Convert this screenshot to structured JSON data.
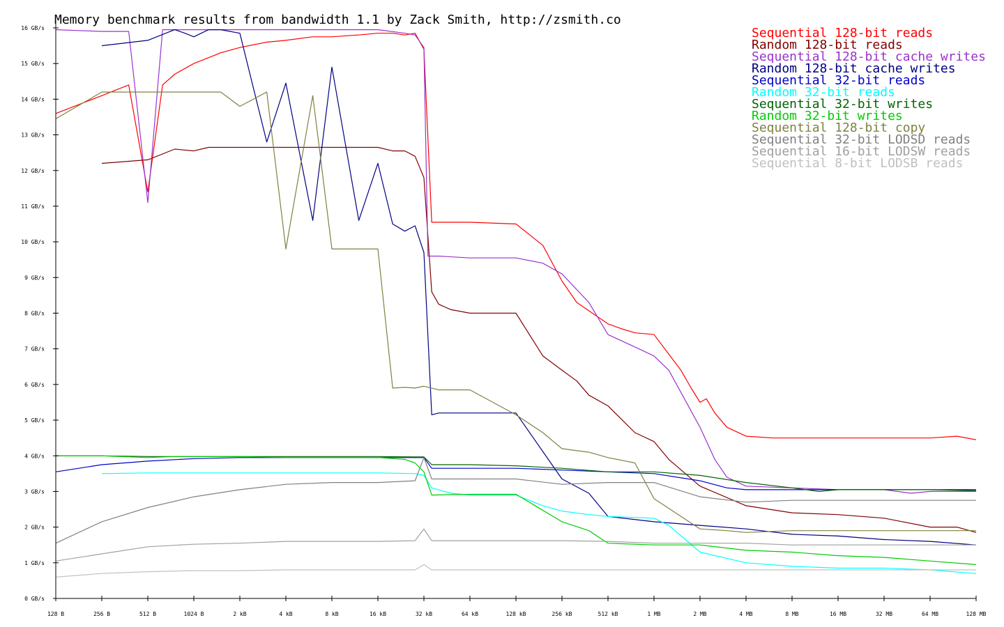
{
  "chart_data": {
    "type": "line",
    "title": "Memory benchmark results from bandwidth 1.1 by Zack Smith, http://zsmith.co",
    "xlabel": "",
    "ylabel": "",
    "x_scale": "log2",
    "x_ticks": [
      "128 B",
      "256 B",
      "512 B",
      "1024 B",
      "2 kB",
      "4 kB",
      "8 kB",
      "16 kB",
      "32 kB",
      "64 kB",
      "128 kB",
      "256 kB",
      "512 kB",
      "1 MB",
      "2 MB",
      "4 MB",
      "8 MB",
      "16 MB",
      "32 MB",
      "64 MB",
      "128 MB"
    ],
    "y_ticks": [
      "0 GB/s",
      "1 GB/s",
      "2 GB/s",
      "3 GB/s",
      "4 GB/s",
      "5 GB/s",
      "6 GB/s",
      "7 GB/s",
      "8 GB/s",
      "9 GB/s",
      "10 GB/s",
      "11 GB/s",
      "12 GB/s",
      "13 GB/s",
      "14 GB/s",
      "15 GB/s",
      "16 GB/s"
    ],
    "ylim": [
      0,
      16
    ],
    "grid": false,
    "legend_position": "top-right",
    "series": [
      {
        "name": "Sequential 128-bit reads",
        "color": "#ff0000",
        "x": [
          "128 B",
          "256 B",
          "384 B",
          "512 B",
          "640 B",
          "768 B",
          "1024 B",
          "1.5 kB",
          "2 kB",
          "3 kB",
          "4 kB",
          "6 kB",
          "8 kB",
          "12 kB",
          "16 kB",
          "20 kB",
          "24 kB",
          "28 kB",
          "32 kB",
          "36 kB",
          "40 kB",
          "64 kB",
          "128 kB",
          "192 kB",
          "256 kB",
          "320 kB",
          "512 kB",
          "640 kB",
          "768 kB",
          "1 MB",
          "1.5 MB",
          "1.75 MB",
          "2 MB",
          "2.2 MB",
          "2.5 MB",
          "3 MB",
          "4 MB",
          "6 MB",
          "8 MB",
          "16 MB",
          "32 MB",
          "64 MB",
          "96 MB",
          "128 MB"
        ],
        "y": [
          13.6,
          14.1,
          14.4,
          11.4,
          14.4,
          14.7,
          15.0,
          15.3,
          15.45,
          15.6,
          15.65,
          15.75,
          15.75,
          15.8,
          15.85,
          15.85,
          15.8,
          15.85,
          15.4,
          10.55,
          10.55,
          10.55,
          10.5,
          9.9,
          8.9,
          8.3,
          7.7,
          7.55,
          7.45,
          7.4,
          6.4,
          5.9,
          5.5,
          5.6,
          5.2,
          4.8,
          4.55,
          4.5,
          4.5,
          4.5,
          4.5,
          4.5,
          4.55,
          4.45
        ]
      },
      {
        "name": "Random 128-bit reads",
        "color": "#800000",
        "x": [
          "256 B",
          "512 B",
          "768 B",
          "1024 B",
          "1.25 kB",
          "2 kB",
          "4 kB",
          "8 kB",
          "12 kB",
          "16 kB",
          "20 kB",
          "24 kB",
          "28 kB",
          "32 kB",
          "36 kB",
          "40 kB",
          "48 kB",
          "64 kB",
          "128 kB",
          "192 kB",
          "256 kB",
          "320 kB",
          "384 kB",
          "512 kB",
          "768 kB",
          "1 MB",
          "1.25 MB",
          "2 MB",
          "4 MB",
          "8 MB",
          "16 MB",
          "32 MB",
          "64 MB",
          "96 MB",
          "128 MB"
        ],
        "y": [
          12.2,
          12.3,
          12.6,
          12.55,
          12.65,
          12.65,
          12.65,
          12.65,
          12.65,
          12.65,
          12.55,
          12.55,
          12.4,
          11.8,
          8.6,
          8.25,
          8.1,
          8.0,
          8.0,
          6.8,
          6.4,
          6.1,
          5.7,
          5.4,
          4.65,
          4.4,
          3.9,
          3.15,
          2.6,
          2.4,
          2.35,
          2.25,
          2.0,
          2.0,
          1.85
        ]
      },
      {
        "name": "Sequential 128-bit cache writes",
        "color": "#9933cc",
        "x": [
          "128 B",
          "256 B",
          "384 B",
          "512 B",
          "640 B",
          "768 B",
          "1024 B",
          "2 kB",
          "4 kB",
          "8 kB",
          "16 kB",
          "24 kB",
          "28 kB",
          "32 kB",
          "34 kB",
          "40 kB",
          "64 kB",
          "128 kB",
          "192 kB",
          "256 kB",
          "384 kB",
          "512 kB",
          "768 kB",
          "1 MB",
          "1.25 MB",
          "2 MB",
          "2.5 MB",
          "3 MB",
          "4 MB",
          "8 MB",
          "16 MB",
          "32 MB",
          "48 MB",
          "64 MB",
          "128 MB"
        ],
        "y": [
          15.95,
          15.9,
          15.9,
          11.1,
          15.95,
          15.95,
          15.95,
          15.95,
          15.95,
          15.95,
          15.95,
          15.85,
          15.8,
          15.45,
          9.6,
          9.6,
          9.55,
          9.55,
          9.4,
          9.1,
          8.3,
          7.4,
          7.05,
          6.8,
          6.4,
          4.8,
          3.9,
          3.4,
          3.15,
          3.1,
          3.05,
          3.05,
          2.95,
          3.0,
          3.0
        ]
      },
      {
        "name": "Random 128-bit cache writes",
        "color": "#000080",
        "x": [
          "256 B",
          "512 B",
          "768 B",
          "896 B",
          "1024 B",
          "1.25 kB",
          "1.5 kB",
          "2 kB",
          "3 kB",
          "4 kB",
          "6 kB",
          "8 kB",
          "12 kB",
          "16 kB",
          "20 kB",
          "24 kB",
          "28 kB",
          "32 kB",
          "36 kB",
          "40 kB",
          "64 kB",
          "128 kB",
          "256 kB",
          "384 kB",
          "512 kB",
          "1 MB",
          "2 MB",
          "4 MB",
          "8 MB",
          "16 MB",
          "32 MB",
          "64 MB",
          "128 MB"
        ],
        "y": [
          15.5,
          15.65,
          15.95,
          15.85,
          15.75,
          15.95,
          15.95,
          15.85,
          12.8,
          14.45,
          10.6,
          14.9,
          10.6,
          12.2,
          10.5,
          10.3,
          10.45,
          9.7,
          5.15,
          5.2,
          5.2,
          5.2,
          3.35,
          2.95,
          2.3,
          2.15,
          2.05,
          1.95,
          1.8,
          1.75,
          1.65,
          1.6,
          1.5
        ]
      },
      {
        "name": "Sequential 32-bit reads",
        "color": "#0000cc",
        "x": [
          "128 B",
          "256 B",
          "512 B",
          "1024 B",
          "2 kB",
          "4 kB",
          "8 kB",
          "16 kB",
          "28 kB",
          "32 kB",
          "36 kB",
          "64 kB",
          "128 kB",
          "256 kB",
          "512 kB",
          "1 MB",
          "2 MB",
          "3 MB",
          "4 MB",
          "8 MB",
          "16 MB",
          "32 MB",
          "64 MB",
          "128 MB"
        ],
        "y": [
          3.55,
          3.75,
          3.85,
          3.92,
          3.95,
          3.95,
          3.95,
          3.95,
          3.95,
          3.95,
          3.65,
          3.65,
          3.65,
          3.6,
          3.55,
          3.5,
          3.3,
          3.1,
          3.05,
          3.05,
          3.05,
          3.05,
          3.05,
          3.05
        ]
      },
      {
        "name": "Random 32-bit reads",
        "color": "#00ffff",
        "x": [
          "256 B",
          "512 B",
          "1024 B",
          "2 kB",
          "4 kB",
          "8 kB",
          "16 kB",
          "28 kB",
          "32 kB",
          "36 kB",
          "48 kB",
          "64 kB",
          "128 kB",
          "192 kB",
          "256 kB",
          "384 kB",
          "512 kB",
          "1 MB",
          "1.25 MB",
          "2 MB",
          "4 MB",
          "8 MB",
          "16 MB",
          "32 MB",
          "64 MB",
          "128 MB"
        ],
        "y": [
          3.5,
          3.52,
          3.52,
          3.52,
          3.52,
          3.52,
          3.52,
          3.5,
          3.45,
          3.1,
          2.95,
          2.9,
          2.9,
          2.6,
          2.45,
          2.35,
          2.3,
          2.25,
          2.05,
          1.3,
          1.0,
          0.9,
          0.85,
          0.85,
          0.8,
          0.7
        ]
      },
      {
        "name": "Sequential 32-bit writes",
        "color": "#006400",
        "x": [
          "128 B",
          "256 B",
          "512 B",
          "1024 B",
          "2 kB",
          "4 kB",
          "8 kB",
          "16 kB",
          "28 kB",
          "32 kB",
          "36 kB",
          "64 kB",
          "128 kB",
          "256 kB",
          "512 kB",
          "1 MB",
          "2 MB",
          "4 MB",
          "8 MB",
          "12 MB",
          "16 MB",
          "32 MB",
          "64 MB",
          "128 MB"
        ],
        "y": [
          4.0,
          4.0,
          3.98,
          3.98,
          3.98,
          3.98,
          3.98,
          3.98,
          3.97,
          3.97,
          3.75,
          3.75,
          3.72,
          3.65,
          3.55,
          3.55,
          3.45,
          3.25,
          3.1,
          3.0,
          3.05,
          3.05,
          3.05,
          3.02
        ]
      },
      {
        "name": "Random 32-bit writes",
        "color": "#00cc00",
        "x": [
          "128 B",
          "256 B",
          "512 B",
          "768 B",
          "1024 B",
          "2 kB",
          "4 kB",
          "8 kB",
          "16 kB",
          "24 kB",
          "28 kB",
          "32 kB",
          "36 kB",
          "64 kB",
          "128 kB",
          "256 kB",
          "384 kB",
          "512 kB",
          "1 MB",
          "2 MB",
          "4 MB",
          "8 MB",
          "16 MB",
          "32 MB",
          "64 MB",
          "128 MB"
        ],
        "y": [
          4.0,
          4.0,
          3.95,
          3.98,
          3.98,
          3.98,
          3.95,
          3.95,
          3.95,
          3.9,
          3.8,
          3.55,
          2.9,
          2.92,
          2.92,
          2.15,
          1.9,
          1.55,
          1.5,
          1.5,
          1.35,
          1.3,
          1.2,
          1.15,
          1.05,
          0.95
        ]
      },
      {
        "name": "Sequential 128-bit copy",
        "color": "#808040",
        "x": [
          "128 B",
          "256 B",
          "512 B",
          "1024 B",
          "1.5 kB",
          "2 kB",
          "3 kB",
          "4 kB",
          "6 kB",
          "8 kB",
          "16 kB",
          "20 kB",
          "24 kB",
          "28 kB",
          "32 kB",
          "40 kB",
          "64 kB",
          "128 kB",
          "192 kB",
          "256 kB",
          "384 kB",
          "512 kB",
          "768 kB",
          "1 MB",
          "2 MB",
          "3 MB",
          "4 MB",
          "8 MB",
          "16 MB",
          "32 MB",
          "64 MB",
          "128 MB"
        ],
        "y": [
          13.45,
          14.2,
          14.2,
          14.2,
          14.2,
          13.8,
          14.2,
          9.8,
          14.1,
          9.8,
          9.8,
          5.9,
          5.92,
          5.9,
          5.95,
          5.85,
          5.85,
          5.15,
          4.65,
          4.2,
          4.1,
          3.95,
          3.8,
          2.8,
          1.95,
          1.9,
          1.85,
          1.9,
          1.9,
          1.9,
          1.9,
          1.9
        ]
      },
      {
        "name": "Sequential 32-bit LODSD reads",
        "color": "#808080",
        "x": [
          "128 B",
          "256 B",
          "512 B",
          "1024 B",
          "2 kB",
          "4 kB",
          "8 kB",
          "16 kB",
          "28 kB",
          "32 kB",
          "36 kB",
          "64 kB",
          "128 kB",
          "256 kB",
          "512 kB",
          "1 MB",
          "2 MB",
          "4 MB",
          "8 MB",
          "16 MB",
          "32 MB",
          "64 MB",
          "128 MB"
        ],
        "y": [
          1.55,
          2.15,
          2.55,
          2.85,
          3.05,
          3.2,
          3.25,
          3.25,
          3.3,
          3.95,
          3.35,
          3.35,
          3.35,
          3.2,
          3.25,
          3.25,
          2.85,
          2.7,
          2.75,
          2.75,
          2.75,
          2.75,
          2.75
        ]
      },
      {
        "name": "Sequential 16-bit LODSW reads",
        "color": "#a0a0a0",
        "x": [
          "128 B",
          "256 B",
          "512 B",
          "1024 B",
          "2 kB",
          "4 kB",
          "8 kB",
          "16 kB",
          "28 kB",
          "32 kB",
          "36 kB",
          "64 kB",
          "128 kB",
          "256 kB",
          "512 kB",
          "1 MB",
          "2 MB",
          "4 MB",
          "8 MB",
          "16 MB",
          "32 MB",
          "64 MB",
          "128 MB"
        ],
        "y": [
          1.05,
          1.25,
          1.45,
          1.52,
          1.55,
          1.6,
          1.6,
          1.6,
          1.62,
          1.95,
          1.62,
          1.62,
          1.62,
          1.62,
          1.6,
          1.55,
          1.55,
          1.55,
          1.5,
          1.5,
          1.5,
          1.5,
          1.5
        ]
      },
      {
        "name": "Sequential 8-bit LODSB reads",
        "color": "#c0c0c0",
        "x": [
          "128 B",
          "256 B",
          "512 B",
          "1024 B",
          "2 kB",
          "4 kB",
          "8 kB",
          "16 kB",
          "28 kB",
          "32 kB",
          "36 kB",
          "64 kB",
          "128 kB",
          "256 kB",
          "512 kB",
          "1 MB",
          "2 MB",
          "4 MB",
          "8 MB",
          "16 MB",
          "32 MB",
          "64 MB",
          "128 MB"
        ],
        "y": [
          0.6,
          0.7,
          0.75,
          0.78,
          0.78,
          0.8,
          0.8,
          0.8,
          0.8,
          0.95,
          0.8,
          0.8,
          0.8,
          0.8,
          0.8,
          0.8,
          0.8,
          0.8,
          0.8,
          0.8,
          0.8,
          0.8,
          0.8
        ]
      }
    ]
  }
}
